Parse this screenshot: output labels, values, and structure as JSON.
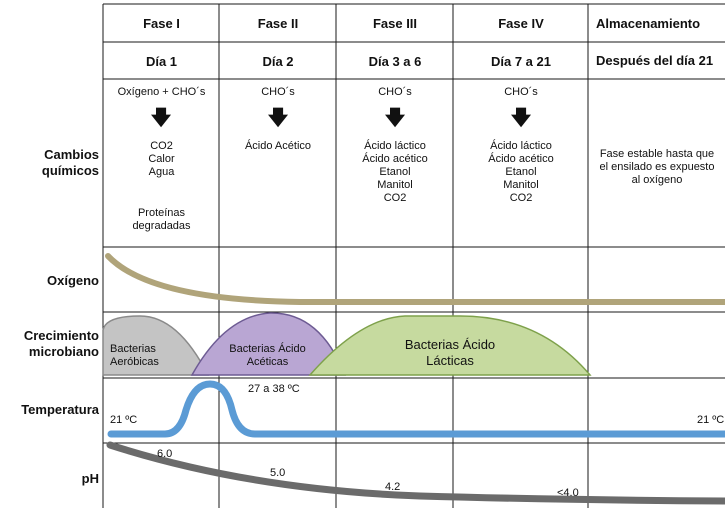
{
  "header": {
    "phases": [
      "Fase I",
      "Fase II",
      "Fase III",
      "Fase IV",
      "Almacenamiento"
    ],
    "days": [
      "Día 1",
      "Día 2",
      "Día 3 a 6",
      "Día 7 a 21",
      "Después del día 21"
    ]
  },
  "rows": {
    "chemical": "Cambios\nquímicos",
    "oxygen": "Oxígeno",
    "growth": "Crecimiento\nmicrobiano",
    "temperature": "Temperatura",
    "ph": "pH"
  },
  "chemical": {
    "inputs": [
      "Oxígeno + CHO´s",
      "CHO´s",
      "CHO´s",
      "CHO´s"
    ],
    "arrow_icon": "down-arrow-icon",
    "phase1_products": "CO2\nCalor\nAgua",
    "phase1_extra": "Proteínas\ndegradadas",
    "phase2_products": "Ácido Acético",
    "phase3_products": "Ácido láctico\nÁcido acético\nEtanol\nManitol\nCO2",
    "phase4_products": "Ácido láctico\nÁcido acético\nEtanol\nManitol\nCO2",
    "storage": "Fase estable hasta que\nel ensilado es expuesto\nal oxígeno"
  },
  "growth": {
    "aerobic": "Bacterias\nAeróbicas",
    "acetic": "Bacterias Ácido\nAcéticas",
    "lactic": "Bacterias Ácido\nLácticas"
  },
  "temperature": {
    "start": "21 ºC",
    "peak": "27 a 38 ºC",
    "end": "21 ºC"
  },
  "ph": {
    "labels": [
      "6.0",
      "5.0",
      "4.2",
      "<4.0"
    ]
  },
  "colors": {
    "oxygen": "#b0a47a",
    "aerobic": "#c4c4c4",
    "acetic": "#b9a6d3",
    "lactic": "#c6da9f",
    "temperature": "#5b9bd5",
    "ph": "#6b6b6b",
    "grid": "#1a1a1a"
  }
}
